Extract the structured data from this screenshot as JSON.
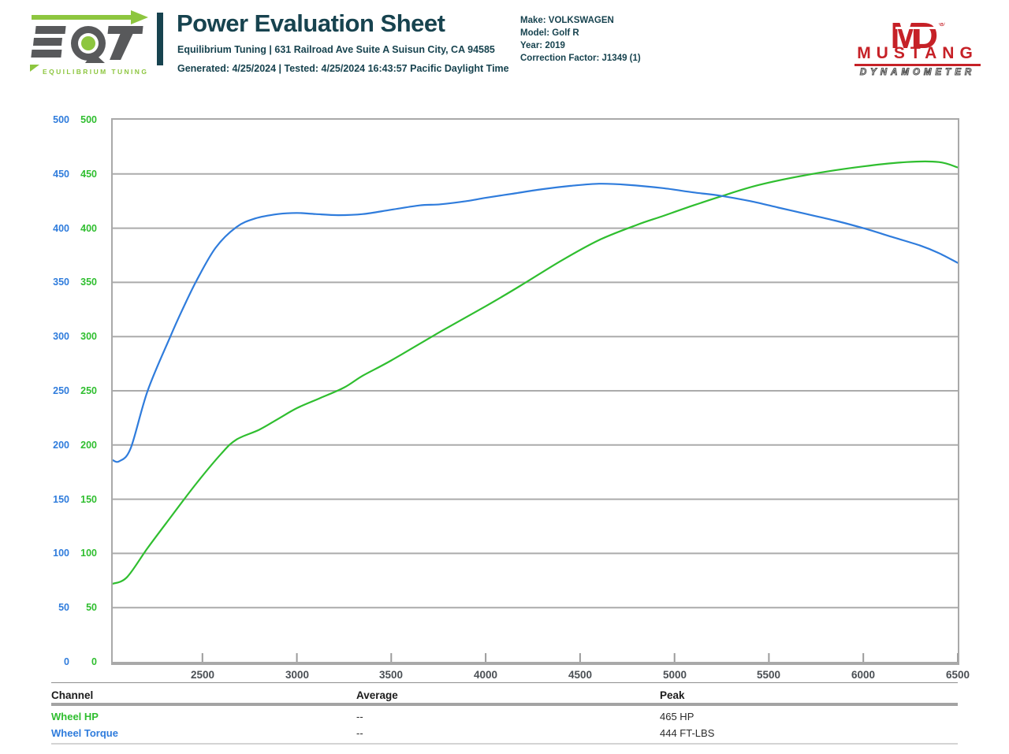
{
  "header": {
    "title": "Power Evaluation Sheet",
    "address_line": "Equilibrium Tuning | 631 Railroad Ave Suite A Suisun City, CA 94585",
    "generated_line": "Generated: 4/25/2024 | Tested: 4/25/2024 16:43:57 Pacific Daylight Time",
    "teal": "#17434F",
    "vehicle_lines": [
      "Make: VOLKSWAGEN",
      "Model: Golf R",
      "Year: 2019",
      "Correction Factor: J1349 (1)"
    ],
    "eqt_logo": {
      "letters": "EQT",
      "tagline": "EQUILIBRIUM TUNING",
      "gray": "#58595B",
      "green": "#8DC63F"
    },
    "mustang_logo": {
      "monogram": "MD",
      "registered": "®",
      "name": "MUSTANG",
      "subtitle": "DYNAMOMETER",
      "red": "#C62127"
    }
  },
  "chart_data": {
    "type": "line",
    "title": "",
    "xlabel": "",
    "ylabel": "",
    "x_range": [
      2025,
      6500
    ],
    "y_range": [
      0,
      500
    ],
    "x_ticks": [
      2500,
      3000,
      3500,
      4000,
      4500,
      5000,
      5500,
      6000,
      6500
    ],
    "y_ticks": [
      0,
      50,
      100,
      150,
      200,
      250,
      300,
      350,
      400,
      450,
      500
    ],
    "grid": "horizontal gridlines every 50, gray",
    "legend_position": "none (legend provided by table below chart)",
    "axis_label_columns": [
      {
        "series": "Wheel Torque",
        "color": "#2F7CDC",
        "side": "outer-left"
      },
      {
        "series": "Wheel HP",
        "color": "#2FBE2F",
        "side": "inner-left"
      }
    ],
    "gridline_color": "#ABABAB",
    "series": [
      {
        "name": "Wheel HP",
        "unit": "HP",
        "color": "#2FBE2F",
        "points": [
          [
            2025,
            72
          ],
          [
            2100,
            78
          ],
          [
            2210,
            105
          ],
          [
            2330,
            133
          ],
          [
            2470,
            165
          ],
          [
            2600,
            192
          ],
          [
            2680,
            205
          ],
          [
            2800,
            214
          ],
          [
            2900,
            224
          ],
          [
            3000,
            234
          ],
          [
            3120,
            243
          ],
          [
            3250,
            253
          ],
          [
            3350,
            264
          ],
          [
            3500,
            278
          ],
          [
            3765,
            305
          ],
          [
            4000,
            328
          ],
          [
            4185,
            347
          ],
          [
            4400,
            370
          ],
          [
            4600,
            389
          ],
          [
            4800,
            403
          ],
          [
            4935,
            411
          ],
          [
            5100,
            421
          ],
          [
            5240,
            429
          ],
          [
            5450,
            440
          ],
          [
            5730,
            450
          ],
          [
            6000,
            457
          ],
          [
            6230,
            461
          ],
          [
            6400,
            461
          ],
          [
            6500,
            456
          ]
        ]
      },
      {
        "name": "Wheel Torque",
        "unit": "FT-LBS",
        "color": "#2F7CDC",
        "points": [
          [
            2025,
            186
          ],
          [
            2060,
            185
          ],
          [
            2120,
            197
          ],
          [
            2210,
            250
          ],
          [
            2330,
            300
          ],
          [
            2400,
            327
          ],
          [
            2470,
            352
          ],
          [
            2570,
            382
          ],
          [
            2680,
            401
          ],
          [
            2780,
            409
          ],
          [
            2900,
            413
          ],
          [
            3000,
            414
          ],
          [
            3100,
            413
          ],
          [
            3220,
            412
          ],
          [
            3350,
            413
          ],
          [
            3500,
            417
          ],
          [
            3650,
            421
          ],
          [
            3760,
            422
          ],
          [
            3900,
            425
          ],
          [
            4000,
            428
          ],
          [
            4150,
            432
          ],
          [
            4300,
            436
          ],
          [
            4450,
            439
          ],
          [
            4600,
            441
          ],
          [
            4750,
            440
          ],
          [
            4935,
            437
          ],
          [
            5100,
            433
          ],
          [
            5240,
            430
          ],
          [
            5400,
            425
          ],
          [
            5550,
            419
          ],
          [
            5700,
            413
          ],
          [
            5850,
            407
          ],
          [
            6000,
            400
          ],
          [
            6150,
            392
          ],
          [
            6300,
            384
          ],
          [
            6400,
            377
          ],
          [
            6500,
            368
          ]
        ]
      }
    ]
  },
  "table": {
    "headers": [
      "Channel",
      "Average",
      "Peak"
    ],
    "rows": [
      {
        "channel": "Wheel HP",
        "average": "--",
        "peak": "465 HP",
        "color": "#2FBE2F"
      },
      {
        "channel": "Wheel Torque",
        "average": "--",
        "peak": "444 FT-LBS",
        "color": "#2F7CDC"
      }
    ]
  }
}
